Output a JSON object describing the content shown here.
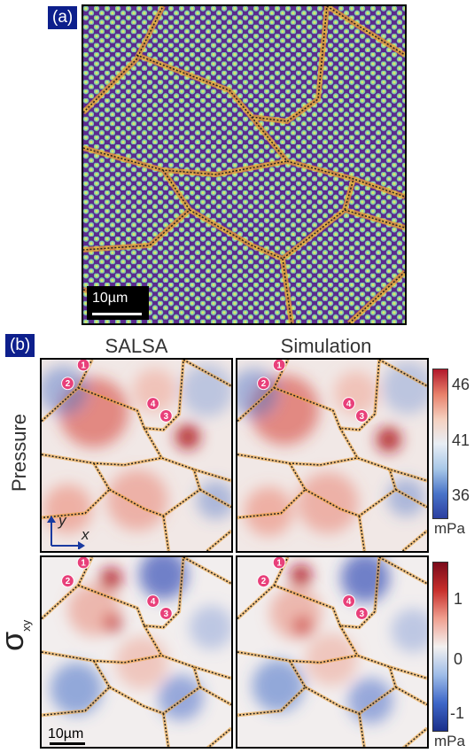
{
  "panel_a": {
    "tag": "(a)",
    "scalebar": "10µm"
  },
  "panel_b": {
    "tag": "(b)",
    "columns": [
      "SALSA",
      "Simulation"
    ],
    "rows": [
      "Pressure",
      "σ"
    ],
    "row_subscript": "xy",
    "markers": [
      "1",
      "2",
      "3",
      "4"
    ],
    "scalebar": "10µm",
    "axis_x": "x",
    "axis_y": "y",
    "pressure_colorbar": {
      "ticks": [
        "46",
        "41",
        "36"
      ],
      "unit": "mPa"
    },
    "shear_colorbar": {
      "ticks": [
        "1",
        "0",
        "-1"
      ],
      "unit": "mPa"
    }
  },
  "colors": {
    "tag_bg": "#0d1f8c",
    "marker": "#e8407a",
    "boundary": "#f0a030"
  }
}
